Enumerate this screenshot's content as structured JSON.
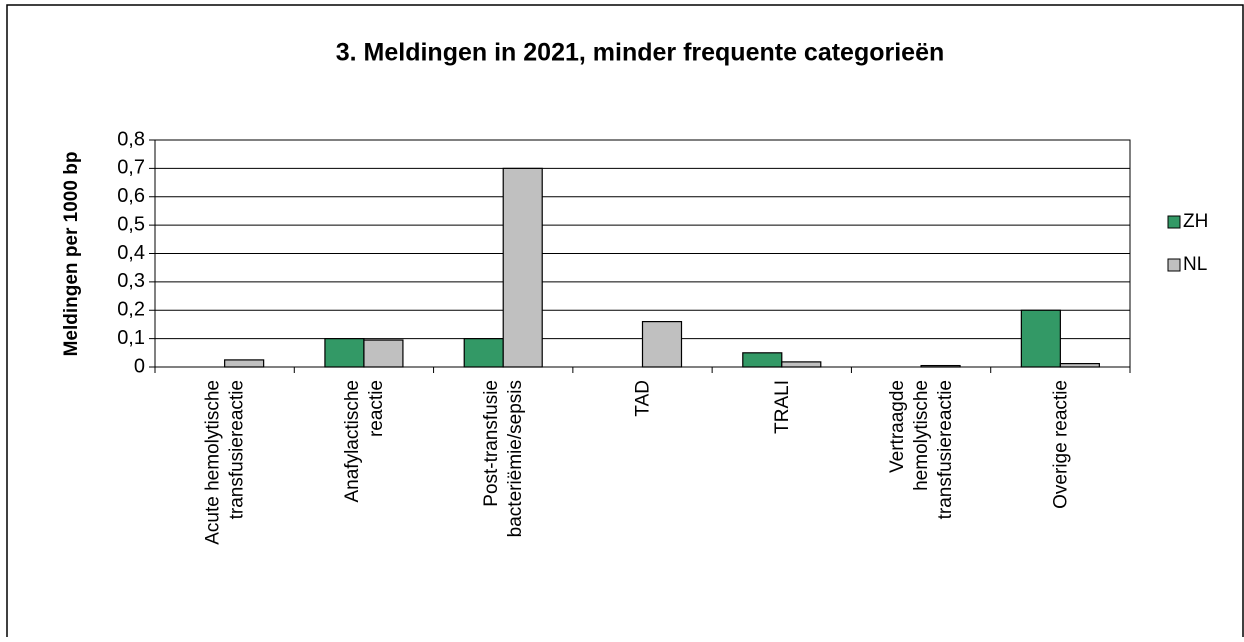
{
  "chart_data": {
    "type": "bar",
    "title": "3. Meldingen in 2021, minder frequente categorieën",
    "y_label": "Meldingen per 1000 bp",
    "categories": [
      "Acute hemolytische\ntransfusiereactie",
      "Anafylactische\nreactie",
      "Post-transfusie\nbacteriëmie/sepsis",
      "TAD",
      "TRALI",
      "Vertraagde\nhemolytische\ntransfusiereactie",
      "Overige reactie"
    ],
    "series": [
      {
        "name": "ZH",
        "color": "#339966",
        "values": [
          0,
          0.1,
          0.1,
          0,
          0.05,
          0,
          0.2
        ]
      },
      {
        "name": "NL",
        "color": "#c0c0c0",
        "values": [
          0.025,
          0.095,
          0.7,
          0.16,
          0.018,
          0.005,
          0.012
        ]
      }
    ],
    "ylim": [
      0,
      0.8
    ],
    "yticks": [
      0,
      {
        "value": 0.1,
        "label": "0,1"
      },
      {
        "value": 0.2,
        "label": "0,2"
      },
      {
        "value": 0.3,
        "label": "0,3"
      },
      {
        "value": 0.4,
        "label": "0,4"
      },
      {
        "value": 0.5,
        "label": "0,5"
      },
      {
        "value": 0.6,
        "label": "0,6"
      },
      {
        "value": 0.7,
        "label": "0,7"
      },
      {
        "value": 0.8,
        "label": "0,8"
      }
    ],
    "grid": true,
    "legend": "right"
  }
}
